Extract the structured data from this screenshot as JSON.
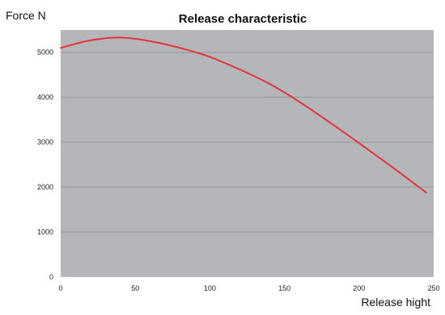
{
  "chart_data": {
    "type": "line",
    "title": "Release characteristic",
    "ylabel": "Force N",
    "xlabel": "Release hight",
    "xlim": [
      0,
      250
    ],
    "ylim": [
      0,
      5500
    ],
    "xticks": [
      0,
      50,
      100,
      150,
      200,
      250
    ],
    "xtick_labels": [
      "0",
      "50",
      "100",
      "150",
      "200",
      "250"
    ],
    "yticks": [
      0,
      1000,
      2000,
      3000,
      4000,
      5000
    ],
    "ytick_labels": [
      "0",
      "1000",
      "2000",
      "3000",
      "4000",
      "5000"
    ],
    "grid": "horizontal",
    "colors": {
      "plot_background": "#b4b6b9",
      "grid": "#9fa1a4",
      "line": "#e3333b"
    },
    "series": [
      {
        "x": [
          0,
          20,
          40,
          60,
          80,
          100,
          120,
          140,
          160,
          180,
          200,
          220,
          245
        ],
        "y": [
          5100,
          5270,
          5330,
          5250,
          5100,
          4900,
          4620,
          4300,
          3900,
          3450,
          2980,
          2500,
          1880
        ]
      }
    ]
  }
}
